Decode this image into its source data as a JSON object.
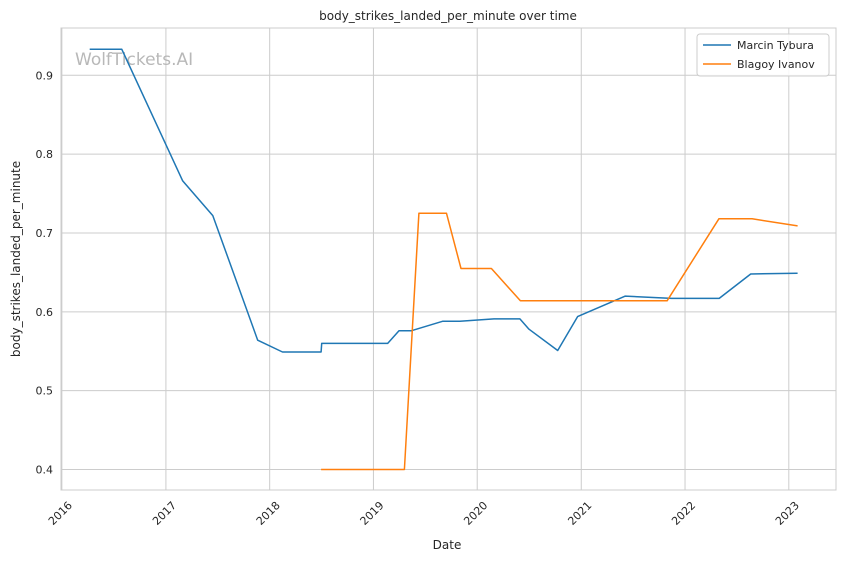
{
  "chart_data": {
    "type": "line",
    "title": "body_strikes_landed_per_minute over time",
    "xlabel": "Date",
    "ylabel": "body_strikes_landed_per_minute",
    "watermark": "WolfTickets.AI",
    "xlim": [
      "2015-12-29",
      "2023-06-16"
    ],
    "ylim": [
      0.374,
      0.96
    ],
    "x_ticks": [
      "2016",
      "2017",
      "2018",
      "2019",
      "2020",
      "2021",
      "2022",
      "2023"
    ],
    "y_ticks": [
      "0.4",
      "0.5",
      "0.6",
      "0.7",
      "0.8",
      "0.9"
    ],
    "grid": true,
    "legend_position": "top-right",
    "series": [
      {
        "name": "Marcin Tybura",
        "color": "#1f77b4",
        "points": [
          [
            "2016-04-08",
            0.933
          ],
          [
            "2016-07-30",
            0.933
          ],
          [
            "2017-03-01",
            0.766
          ],
          [
            "2017-06-15",
            0.722
          ],
          [
            "2017-11-20",
            0.564
          ],
          [
            "2018-02-15",
            0.549
          ],
          [
            "2018-07-01",
            0.549
          ],
          [
            "2018-07-03",
            0.56
          ],
          [
            "2019-02-20",
            0.56
          ],
          [
            "2019-04-01",
            0.576
          ],
          [
            "2019-05-15",
            0.576
          ],
          [
            "2019-09-01",
            0.588
          ],
          [
            "2019-11-01",
            0.588
          ],
          [
            "2020-02-29",
            0.591
          ],
          [
            "2020-05-30",
            0.591
          ],
          [
            "2020-07-01",
            0.578
          ],
          [
            "2020-10-10",
            0.551
          ],
          [
            "2020-12-19",
            0.594
          ],
          [
            "2021-06-05",
            0.62
          ],
          [
            "2021-11-15",
            0.617
          ],
          [
            "2022-05-01",
            0.617
          ],
          [
            "2022-08-20",
            0.648
          ],
          [
            "2023-02-01",
            0.649
          ]
        ]
      },
      {
        "name": "Blagoy Ivanov",
        "color": "#ff7f0e",
        "points": [
          [
            "2018-07-01",
            0.4
          ],
          [
            "2019-04-20",
            0.4
          ],
          [
            "2019-06-10",
            0.725
          ],
          [
            "2019-09-15",
            0.725
          ],
          [
            "2019-11-05",
            0.655
          ],
          [
            "2020-02-20",
            0.655
          ],
          [
            "2020-06-01",
            0.614
          ],
          [
            "2021-10-30",
            0.614
          ],
          [
            "2022-04-30",
            0.718
          ],
          [
            "2022-08-25",
            0.718
          ],
          [
            "2023-02-01",
            0.709
          ]
        ]
      }
    ]
  }
}
